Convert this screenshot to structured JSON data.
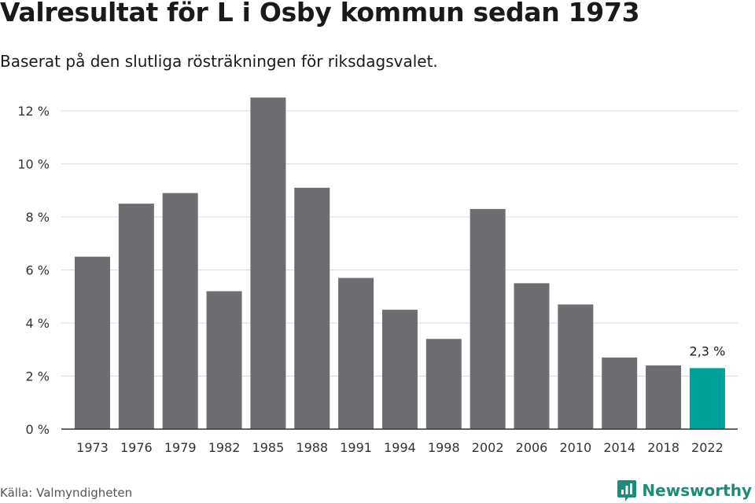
{
  "title": "Valresultat för L i Osby kommun sedan 1973",
  "subtitle": "Baserat på den slutliga rösträkningen för riksdagsvalet.",
  "source": "Källa: Valmyndigheten",
  "brand": {
    "name": "Newsworthy",
    "icon": "newsworthy-logo-icon",
    "color": "#1f8a78"
  },
  "chart_data": {
    "type": "bar",
    "categories": [
      "1973",
      "1976",
      "1979",
      "1982",
      "1985",
      "1988",
      "1991",
      "1994",
      "1998",
      "2002",
      "2006",
      "2010",
      "2014",
      "2018",
      "2022"
    ],
    "values": [
      6.5,
      8.5,
      8.9,
      5.2,
      12.5,
      9.1,
      5.7,
      4.5,
      3.4,
      8.3,
      5.5,
      4.7,
      2.7,
      2.4,
      2.3
    ],
    "ylim": [
      0,
      12
    ],
    "yticks": [
      0,
      2,
      4,
      6,
      8,
      10,
      12
    ],
    "ytick_labels": [
      "0 %",
      "2 %",
      "4 %",
      "6 %",
      "8 %",
      "10 %",
      "12 %"
    ],
    "grid": true,
    "bar_color": "#6e6d72",
    "highlight_color": "#00a19a",
    "highlight_category": "2022",
    "annotation": {
      "category": "2022",
      "text": "2,3 %"
    },
    "xlabel": "",
    "ylabel": ""
  }
}
